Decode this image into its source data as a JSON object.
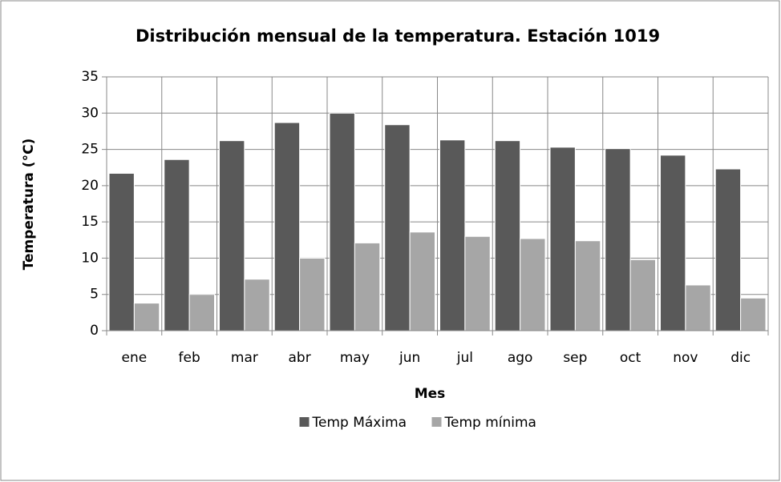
{
  "chart_data": {
    "type": "bar",
    "title": "Distribución mensual de la temperatura. Estación 1019",
    "x_label": "Mes",
    "y_label": "Temperatura (°C)",
    "categories": [
      "ene",
      "feb",
      "mar",
      "abr",
      "may",
      "jun",
      "jul",
      "ago",
      "sep",
      "oct",
      "nov",
      "dic"
    ],
    "series": [
      {
        "name": "Temp Máxima",
        "color": "#595959",
        "values": [
          21.7,
          23.6,
          26.2,
          28.7,
          30.0,
          28.4,
          26.3,
          26.2,
          25.3,
          25.1,
          24.2,
          22.3
        ]
      },
      {
        "name": "Temp mínima",
        "color": "#a6a6a6",
        "values": [
          3.8,
          5.0,
          7.1,
          10.0,
          12.1,
          13.6,
          13.0,
          12.7,
          12.4,
          9.8,
          6.3,
          4.5
        ]
      }
    ],
    "ylim": [
      0,
      35
    ],
    "yticks": [
      0,
      5,
      10,
      15,
      20,
      25,
      30,
      35
    ],
    "grid": true,
    "legend": "bottom"
  }
}
